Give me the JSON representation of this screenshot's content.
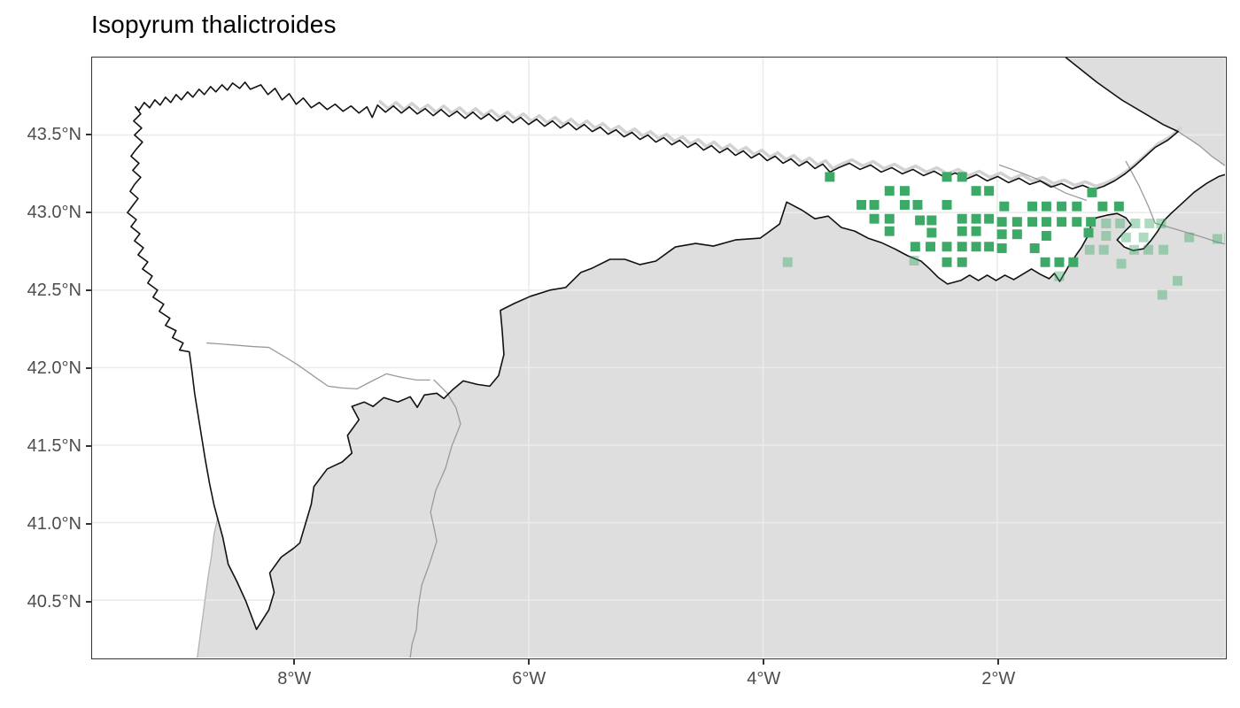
{
  "title": "Isopyrum thalictroides",
  "map": {
    "x_axis": {
      "range": [
        -9.73,
        -0.055
      ],
      "ticks": [
        {
          "label": "8°W",
          "value": -8
        },
        {
          "label": "6°W",
          "value": -6
        },
        {
          "label": "4°W",
          "value": -4
        },
        {
          "label": "2°W",
          "value": -2
        }
      ]
    },
    "y_axis": {
      "range": [
        40.13,
        44.0
      ],
      "ticks": [
        {
          "label": "43.5°N",
          "value": 43.5
        },
        {
          "label": "43.0°N",
          "value": 43.0
        },
        {
          "label": "42.5°N",
          "value": 42.5
        },
        {
          "label": "42.0°N",
          "value": 42.0
        },
        {
          "label": "41.5°N",
          "value": 41.5
        },
        {
          "label": "41.0°N",
          "value": 41.0
        },
        {
          "label": "40.5°N",
          "value": 40.5
        }
      ]
    }
  },
  "colors": {
    "occurrence_green": "#3CA966",
    "occurrence_faded_opacity": 0.42,
    "land_gray": "#DEDEDE",
    "coast_black": "#111111",
    "inner_border_gray": "#9a9a9a",
    "coast_shadow_gray": "#d2d2d2",
    "grid_gray": "#EBEBEB",
    "panel_border": "#333333",
    "axis_text": "#4d4d4d",
    "tick_mark": "#333333"
  },
  "chart_data": {
    "type": "map",
    "title": "Isopyrum thalictroides",
    "description": "Species occurrence grid-cell map of northern Iberian Peninsula (Galicia, Cantabrian coast, Basque Country, N Portugal). White polygon = study region outlined in black on gray land; green ~10 km grid squares = records.",
    "xlabel_ticks": [
      "8°W",
      "6°W",
      "4°W",
      "2°W"
    ],
    "ylabel_ticks": [
      "43.5°N",
      "43.0°N",
      "42.5°N",
      "42.0°N",
      "41.5°N",
      "41.0°N",
      "40.5°N"
    ],
    "lon_range": [
      -9.73,
      -0.055
    ],
    "lat_range": [
      40.13,
      44.0
    ],
    "series": [
      {
        "name": "occurrences_solid",
        "marker": "square",
        "points": [
          [
            -3.43,
            43.23
          ],
          [
            -2.43,
            43.23
          ],
          [
            -2.3,
            43.23
          ],
          [
            -2.92,
            43.14
          ],
          [
            -2.79,
            43.14
          ],
          [
            -2.18,
            43.14
          ],
          [
            -2.07,
            43.14
          ],
          [
            -1.19,
            43.13
          ],
          [
            -3.16,
            43.05
          ],
          [
            -3.05,
            43.05
          ],
          [
            -2.79,
            43.05
          ],
          [
            -2.68,
            43.05
          ],
          [
            -2.43,
            43.05
          ],
          [
            -1.94,
            43.04
          ],
          [
            -1.7,
            43.04
          ],
          [
            -1.58,
            43.04
          ],
          [
            -1.45,
            43.04
          ],
          [
            -1.32,
            43.04
          ],
          [
            -1.1,
            43.04
          ],
          [
            -0.96,
            43.04
          ],
          [
            -3.05,
            42.96
          ],
          [
            -2.92,
            42.96
          ],
          [
            -2.66,
            42.95
          ],
          [
            -2.56,
            42.95
          ],
          [
            -2.3,
            42.96
          ],
          [
            -2.18,
            42.96
          ],
          [
            -2.07,
            42.96
          ],
          [
            -1.96,
            42.94
          ],
          [
            -1.83,
            42.94
          ],
          [
            -1.7,
            42.94
          ],
          [
            -1.58,
            42.94
          ],
          [
            -1.45,
            42.94
          ],
          [
            -1.32,
            42.94
          ],
          [
            -1.2,
            42.94
          ],
          [
            -2.92,
            42.88
          ],
          [
            -2.56,
            42.87
          ],
          [
            -2.3,
            42.88
          ],
          [
            -2.18,
            42.88
          ],
          [
            -1.96,
            42.86
          ],
          [
            -1.83,
            42.86
          ],
          [
            -1.58,
            42.85
          ],
          [
            -1.22,
            42.87
          ],
          [
            -2.7,
            42.78
          ],
          [
            -2.57,
            42.78
          ],
          [
            -2.43,
            42.78
          ],
          [
            -2.3,
            42.78
          ],
          [
            -2.18,
            42.78
          ],
          [
            -2.07,
            42.78
          ],
          [
            -1.96,
            42.77
          ],
          [
            -1.68,
            42.77
          ],
          [
            -2.43,
            42.68
          ],
          [
            -2.3,
            42.68
          ],
          [
            -1.59,
            42.68
          ],
          [
            -1.47,
            42.68
          ],
          [
            -1.35,
            42.68
          ]
        ]
      },
      {
        "name": "occurrences_faded",
        "marker": "square",
        "points": [
          [
            -3.79,
            42.68
          ],
          [
            -2.71,
            42.69
          ],
          [
            -1.07,
            42.93
          ],
          [
            -0.95,
            42.93
          ],
          [
            -0.82,
            42.93
          ],
          [
            -0.7,
            42.93
          ],
          [
            -0.6,
            42.93
          ],
          [
            -1.07,
            42.85
          ],
          [
            -0.9,
            42.84
          ],
          [
            -0.75,
            42.84
          ],
          [
            -0.36,
            42.84
          ],
          [
            -0.12,
            42.83
          ],
          [
            -0.02,
            42.84
          ],
          [
            -1.21,
            42.76
          ],
          [
            -1.09,
            42.76
          ],
          [
            -0.83,
            42.76
          ],
          [
            -0.71,
            42.76
          ],
          [
            -0.58,
            42.76
          ],
          [
            -0.94,
            42.67
          ],
          [
            -1.47,
            42.59
          ],
          [
            -0.46,
            42.56
          ],
          [
            -0.59,
            42.47
          ]
        ]
      }
    ]
  }
}
